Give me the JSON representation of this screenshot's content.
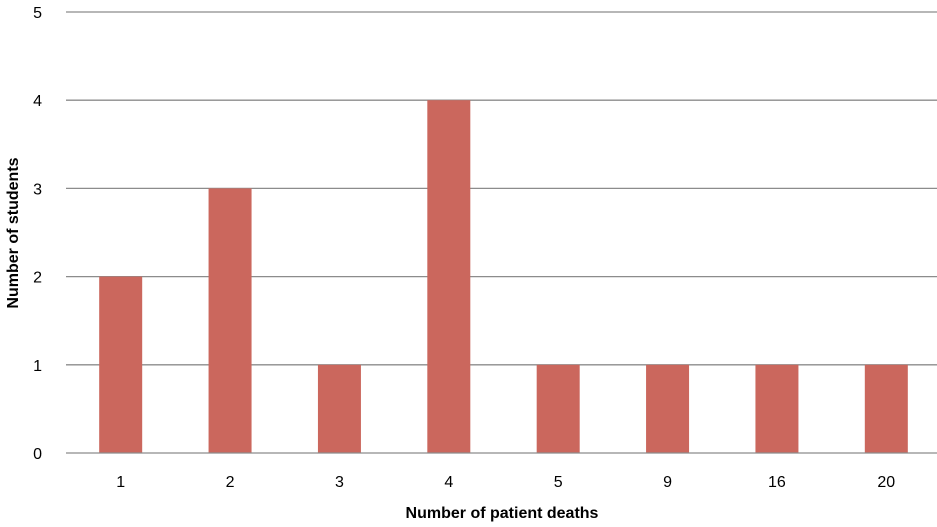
{
  "chart_data": {
    "type": "bar",
    "title": "",
    "xlabel": "Number of patient deaths",
    "ylabel": "Number of students",
    "categories": [
      "1",
      "2",
      "3",
      "4",
      "5",
      "9",
      "16",
      "20"
    ],
    "values": [
      2,
      3,
      1,
      4,
      1,
      1,
      1,
      1
    ],
    "ylim": [
      0,
      5
    ],
    "yticks": [
      "0",
      "1",
      "2",
      "3",
      "4",
      "5"
    ],
    "grid": true,
    "legend": "none",
    "colors": {
      "bar": "#cb675d",
      "grid": "#8c8c8c"
    }
  }
}
